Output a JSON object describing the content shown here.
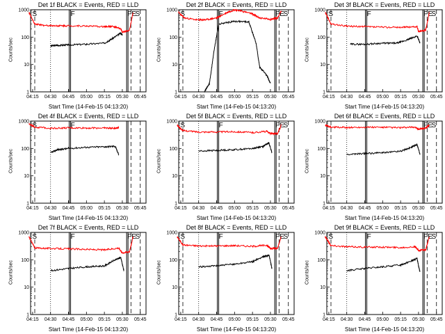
{
  "x_ticks": [
    "04:15",
    "04:30",
    "04:45",
    "05:00",
    "05:15",
    "05:30",
    "05:45"
  ],
  "y_ticks": [
    "1",
    "10",
    "100",
    "1000"
  ],
  "ylabel": "Counts/sec",
  "xlabel": "Start Time (14-Feb-15 04:13:20)",
  "colors": {
    "events": "#000000",
    "lld": "#ff0000"
  },
  "chart_data": [
    {
      "type": "line",
      "title": "Det 1f BLACK = Events, RED = LLD",
      "markers": [
        "S",
        "F",
        "FE",
        "S"
      ],
      "series": [
        {
          "name": "Events",
          "values": [
            [
              4.48,
              null
            ],
            [
              4.5,
              48
            ],
            [
              4.6,
              50
            ],
            [
              4.75,
              52
            ],
            [
              5.0,
              55
            ],
            [
              5.25,
              60
            ],
            [
              5.35,
              85
            ],
            [
              5.48,
              140
            ],
            [
              5.5,
              120
            ]
          ]
        },
        {
          "name": "LLD",
          "values": [
            [
              4.2,
              800
            ],
            [
              4.28,
              300
            ],
            [
              4.4,
              270
            ],
            [
              4.6,
              260
            ],
            [
              4.75,
              260
            ],
            [
              5.0,
              255
            ],
            [
              5.25,
              240
            ],
            [
              5.35,
              250
            ],
            [
              5.48,
              200
            ],
            [
              5.5,
              150
            ],
            [
              5.6,
              180
            ],
            [
              5.65,
              800
            ]
          ]
        }
      ]
    },
    {
      "type": "line",
      "title": "Det 2f BLACK = Events, RED = LLD",
      "markers": [
        "S",
        "F",
        "FE",
        "S"
      ],
      "series": [
        {
          "name": "Events",
          "values": [
            [
              4.58,
              1
            ],
            [
              4.65,
              2
            ],
            [
              4.72,
              40
            ],
            [
              4.78,
              300
            ],
            [
              5.0,
              380
            ],
            [
              5.2,
              360
            ],
            [
              5.3,
              60
            ],
            [
              5.35,
              8
            ],
            [
              5.45,
              4
            ],
            [
              5.5,
              2
            ]
          ]
        },
        {
          "name": "LLD",
          "values": [
            [
              4.22,
              800
            ],
            [
              4.3,
              500
            ],
            [
              4.5,
              420
            ],
            [
              4.6,
              430
            ],
            [
              4.75,
              500
            ],
            [
              4.9,
              800
            ],
            [
              5.0,
              1000
            ],
            [
              5.1,
              900
            ],
            [
              5.25,
              700
            ],
            [
              5.35,
              500
            ],
            [
              5.5,
              450
            ],
            [
              5.6,
              500
            ],
            [
              5.65,
              900
            ]
          ]
        }
      ]
    },
    {
      "type": "line",
      "title": "Det 3f BLACK = Events, RED = LLD",
      "markers": [
        "S",
        "F",
        "FE",
        "S"
      ],
      "series": [
        {
          "name": "Events",
          "values": [
            [
              4.5,
              null
            ],
            [
              4.55,
              55
            ],
            [
              4.75,
              55
            ],
            [
              5.0,
              60
            ],
            [
              5.2,
              60
            ],
            [
              5.35,
              80
            ],
            [
              5.48,
              110
            ],
            [
              5.52,
              60
            ]
          ]
        },
        {
          "name": "LLD",
          "values": [
            [
              4.2,
              800
            ],
            [
              4.28,
              300
            ],
            [
              4.5,
              250
            ],
            [
              4.75,
              240
            ],
            [
              5.0,
              230
            ],
            [
              5.3,
              230
            ],
            [
              5.48,
              240
            ],
            [
              5.5,
              160
            ],
            [
              5.6,
              180
            ],
            [
              5.65,
              800
            ]
          ]
        }
      ]
    },
    {
      "type": "line",
      "title": "Det 4f BLACK = Events, RED = LLD",
      "markers": [
        "S",
        "F"
      ],
      "series": [
        {
          "name": "Events",
          "values": [
            [
              4.5,
              70
            ],
            [
              4.6,
              90
            ],
            [
              4.75,
              100
            ],
            [
              5.0,
              110
            ],
            [
              5.25,
              115
            ],
            [
              5.4,
              120
            ],
            [
              5.45,
              60
            ]
          ]
        },
        {
          "name": "LLD",
          "values": [
            [
              4.2,
              800
            ],
            [
              4.28,
              600
            ],
            [
              4.5,
              550
            ],
            [
              4.75,
              560
            ],
            [
              5.0,
              560
            ],
            [
              5.25,
              560
            ],
            [
              5.4,
              540
            ],
            [
              5.45,
              600
            ]
          ]
        }
      ]
    },
    {
      "type": "line",
      "title": "Det 5f BLACK = Events, RED = LLD",
      "markers": [
        "S",
        "F",
        "FE",
        "S"
      ],
      "series": [
        {
          "name": "Events",
          "values": [
            [
              4.5,
              80
            ],
            [
              4.75,
              85
            ],
            [
              5.0,
              90
            ],
            [
              5.25,
              100
            ],
            [
              5.4,
              120
            ],
            [
              5.48,
              160
            ],
            [
              5.52,
              70
            ]
          ]
        },
        {
          "name": "LLD",
          "values": [
            [
              4.2,
              700
            ],
            [
              4.28,
              450
            ],
            [
              4.5,
              400
            ],
            [
              4.75,
              400
            ],
            [
              5.0,
              410
            ],
            [
              5.25,
              380
            ],
            [
              5.45,
              420
            ],
            [
              5.5,
              350
            ],
            [
              5.6,
              350
            ],
            [
              5.65,
              700
            ]
          ]
        }
      ]
    },
    {
      "type": "line",
      "title": "Det 6f BLACK = Events, RED = LLD",
      "markers": [
        "FE",
        "S"
      ],
      "series": [
        {
          "name": "Events",
          "values": [
            [
              4.5,
              60
            ],
            [
              4.75,
              65
            ],
            [
              5.0,
              70
            ],
            [
              5.25,
              80
            ],
            [
              5.4,
              110
            ],
            [
              5.48,
              140
            ],
            [
              5.52,
              60
            ]
          ]
        },
        {
          "name": "LLD",
          "values": [
            [
              4.2,
              700
            ],
            [
              4.28,
              600
            ],
            [
              4.5,
              580
            ],
            [
              4.75,
              600
            ],
            [
              5.0,
              590
            ],
            [
              5.25,
              570
            ],
            [
              5.45,
              600
            ],
            [
              5.5,
              500
            ],
            [
              5.6,
              560
            ],
            [
              5.65,
              700
            ]
          ]
        }
      ]
    },
    {
      "type": "line",
      "title": "Det 7f BLACK = Events, RED = LLD",
      "markers": [
        "S",
        "F",
        "FE",
        "S"
      ],
      "series": [
        {
          "name": "Events",
          "values": [
            [
              4.5,
              40
            ],
            [
              4.75,
              48
            ],
            [
              5.0,
              55
            ],
            [
              5.25,
              60
            ],
            [
              5.4,
              100
            ],
            [
              5.48,
              120
            ],
            [
              5.52,
              40
            ]
          ]
        },
        {
          "name": "LLD",
          "values": [
            [
              4.2,
              700
            ],
            [
              4.28,
              270
            ],
            [
              4.5,
              260
            ],
            [
              4.75,
              250
            ],
            [
              5.0,
              240
            ],
            [
              5.25,
              230
            ],
            [
              5.45,
              270
            ],
            [
              5.5,
              180
            ],
            [
              5.6,
              200
            ],
            [
              5.65,
              700
            ]
          ]
        }
      ]
    },
    {
      "type": "line",
      "title": "Det 8f BLACK = Events, RED = LLD",
      "markers": [
        "S",
        "F",
        "FE",
        "S"
      ],
      "series": [
        {
          "name": "Events",
          "values": [
            [
              4.5,
              55
            ],
            [
              4.75,
              60
            ],
            [
              5.0,
              70
            ],
            [
              5.25,
              85
            ],
            [
              5.4,
              130
            ],
            [
              5.48,
              150
            ],
            [
              5.52,
              50
            ]
          ]
        },
        {
          "name": "LLD",
          "values": [
            [
              4.2,
              700
            ],
            [
              4.28,
              350
            ],
            [
              4.5,
              320
            ],
            [
              4.75,
              320
            ],
            [
              5.0,
              330
            ],
            [
              5.25,
              310
            ],
            [
              5.45,
              340
            ],
            [
              5.5,
              260
            ],
            [
              5.6,
              260
            ],
            [
              5.65,
              700
            ]
          ]
        }
      ]
    },
    {
      "type": "line",
      "title": "Det 9f BLACK = Events, RED = LLD",
      "markers": [
        "S",
        "F",
        "FE",
        "S"
      ],
      "series": [
        {
          "name": "Events",
          "values": [
            [
              4.5,
              40
            ],
            [
              4.75,
              48
            ],
            [
              5.0,
              55
            ],
            [
              5.25,
              65
            ],
            [
              5.4,
              90
            ],
            [
              5.48,
              110
            ],
            [
              5.52,
              35
            ]
          ]
        },
        {
          "name": "LLD",
          "values": [
            [
              4.2,
              700
            ],
            [
              4.28,
              330
            ],
            [
              4.5,
              300
            ],
            [
              4.75,
              290
            ],
            [
              5.0,
              290
            ],
            [
              5.25,
              280
            ],
            [
              5.45,
              300
            ],
            [
              5.5,
              220
            ],
            [
              5.6,
              230
            ],
            [
              5.65,
              700
            ]
          ]
        }
      ]
    }
  ]
}
